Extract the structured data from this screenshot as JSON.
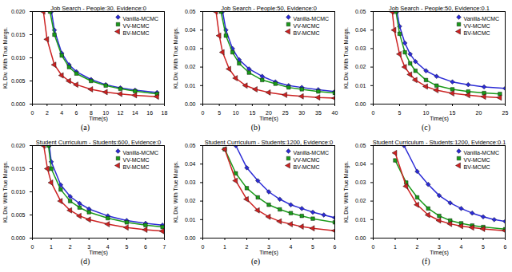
{
  "chart_data": [
    {
      "type": "line",
      "label": "(a)",
      "title": "Job Search - People:30, Evidence:0",
      "x_label": "Time(s)",
      "y_label": "KL Div. With True Margs.",
      "xlim": [
        0,
        18
      ],
      "xticks": [
        0,
        2,
        4,
        6,
        8,
        10,
        12,
        14,
        16,
        18
      ],
      "ylim": [
        0,
        0.02
      ],
      "yticks": [
        {
          "value": 0,
          "label": "0.000"
        },
        {
          "value": 0.005,
          "label": "0.005"
        },
        {
          "value": 0.01,
          "label": "0.010"
        },
        {
          "value": 0.015,
          "label": "0.015"
        },
        {
          "value": 0.02,
          "label": "0.020"
        }
      ],
      "legend": "top-right",
      "series": [
        {
          "name": "Vanilla-MCMC",
          "color": "#2b2bd6",
          "marker": "diamond",
          "x": [
            2.6,
            3,
            4,
            5,
            6,
            8,
            10,
            12,
            14,
            17
          ],
          "values": [
            0.02,
            0.016,
            0.011,
            0.0085,
            0.007,
            0.0053,
            0.0042,
            0.0035,
            0.003,
            0.0025
          ]
        },
        {
          "name": "VV-MCMC",
          "color": "#1a9a1a",
          "marker": "square",
          "x": [
            2.4,
            3,
            4,
            5,
            6,
            8,
            10,
            12,
            14,
            17
          ],
          "values": [
            0.02,
            0.015,
            0.0105,
            0.008,
            0.0066,
            0.005,
            0.004,
            0.0033,
            0.0028,
            0.0022
          ]
        },
        {
          "name": "BV-MCMC",
          "color": "#cc2222",
          "marker": "triangle-left",
          "x": [
            1.5,
            2,
            3,
            4,
            5,
            6,
            8,
            10,
            12,
            14,
            17
          ],
          "values": [
            0.02,
            0.014,
            0.0085,
            0.0062,
            0.005,
            0.0042,
            0.0032,
            0.0026,
            0.0022,
            0.0019,
            0.0016
          ]
        }
      ]
    },
    {
      "type": "line",
      "label": "(b)",
      "title": "Job Search - People:50, Evidence:0",
      "x_label": "Time(s)",
      "y_label": "KL Div. With True Margs.",
      "xlim": [
        0,
        40
      ],
      "xticks": [
        0,
        5,
        10,
        15,
        20,
        25,
        30,
        35,
        40
      ],
      "ylim": [
        0,
        0.05
      ],
      "yticks": [
        {
          "value": 0,
          "label": "0.00"
        },
        {
          "value": 0.01,
          "label": "0.01"
        },
        {
          "value": 0.02,
          "label": "0.02"
        },
        {
          "value": 0.03,
          "label": "0.03"
        },
        {
          "value": 0.04,
          "label": "0.04"
        },
        {
          "value": 0.05,
          "label": "0.05"
        }
      ],
      "legend": "top-right",
      "series": [
        {
          "name": "Vanilla-MCMC",
          "color": "#2b2bd6",
          "marker": "diamond",
          "x": [
            6,
            7,
            9,
            11,
            14,
            18,
            22,
            26,
            30,
            35,
            40
          ],
          "values": [
            0.05,
            0.04,
            0.03,
            0.024,
            0.019,
            0.015,
            0.012,
            0.01,
            0.009,
            0.0078,
            0.0068
          ]
        },
        {
          "name": "VV-MCMC",
          "color": "#1a9a1a",
          "marker": "square",
          "x": [
            5.5,
            7,
            9,
            11,
            14,
            18,
            22,
            26,
            30,
            35,
            40
          ],
          "values": [
            0.05,
            0.037,
            0.028,
            0.022,
            0.017,
            0.013,
            0.011,
            0.009,
            0.008,
            0.0068,
            0.006
          ]
        },
        {
          "name": "BV-MCMC",
          "color": "#cc2222",
          "marker": "triangle-left",
          "x": [
            4,
            5,
            6,
            8,
            10,
            13,
            16,
            20,
            25,
            30,
            35,
            40
          ],
          "values": [
            0.05,
            0.037,
            0.028,
            0.019,
            0.014,
            0.01,
            0.008,
            0.0063,
            0.005,
            0.0042,
            0.0036,
            0.0032
          ]
        }
      ]
    },
    {
      "type": "line",
      "label": "(c)",
      "title": "Job Search - People:50, Evidence:0.1",
      "x_label": "Time(s)",
      "y_label": "KL Div. With True Margs.",
      "xlim": [
        0,
        25
      ],
      "xticks": [
        0,
        5,
        10,
        15,
        20,
        25
      ],
      "ylim": [
        0,
        0.05
      ],
      "yticks": [
        {
          "value": 0,
          "label": "0.00"
        },
        {
          "value": 0.01,
          "label": "0.01"
        },
        {
          "value": 0.02,
          "label": "0.02"
        },
        {
          "value": 0.03,
          "label": "0.03"
        },
        {
          "value": 0.04,
          "label": "0.04"
        },
        {
          "value": 0.05,
          "label": "0.05"
        }
      ],
      "legend": "top-right",
      "series": [
        {
          "name": "Vanilla-MCMC",
          "color": "#2b2bd6",
          "marker": "diamond",
          "x": [
            4.5,
            5,
            6,
            7,
            8,
            10,
            12,
            15,
            18,
            21,
            25
          ],
          "values": [
            0.05,
            0.042,
            0.033,
            0.027,
            0.023,
            0.018,
            0.015,
            0.012,
            0.0105,
            0.0093,
            0.0085
          ]
        },
        {
          "name": "VV-MCMC",
          "color": "#1a9a1a",
          "marker": "square",
          "x": [
            4.3,
            5,
            6,
            7,
            8,
            10,
            12,
            15,
            18,
            21,
            24
          ],
          "values": [
            0.05,
            0.038,
            0.028,
            0.022,
            0.018,
            0.013,
            0.01,
            0.008,
            0.0068,
            0.006,
            0.0055
          ]
        },
        {
          "name": "BV-MCMC",
          "color": "#cc2222",
          "marker": "triangle-left",
          "x": [
            3.6,
            4,
            5,
            6,
            7,
            8,
            10,
            12,
            15,
            18,
            21,
            24
          ],
          "values": [
            0.05,
            0.04,
            0.027,
            0.02,
            0.016,
            0.013,
            0.0095,
            0.0075,
            0.0058,
            0.0048,
            0.004,
            0.0035
          ]
        }
      ]
    },
    {
      "type": "line",
      "label": "(d)",
      "title": "Student Curriculum - Students:600, Evidence:0",
      "x_label": "Time(s)",
      "y_label": "KL Div. With True Margs.",
      "xlim": [
        0,
        7
      ],
      "xticks": [
        0,
        1,
        2,
        3,
        4,
        5,
        6,
        7
      ],
      "ylim": [
        0,
        0.02
      ],
      "yticks": [
        {
          "value": 0,
          "label": "0.000"
        },
        {
          "value": 0.005,
          "label": "0.005"
        },
        {
          "value": 0.01,
          "label": "0.010"
        },
        {
          "value": 0.015,
          "label": "0.015"
        },
        {
          "value": 0.02,
          "label": "0.020"
        }
      ],
      "legend": "top-right",
      "series": [
        {
          "name": "Vanilla-MCMC",
          "color": "#2b2bd6",
          "marker": "diamond",
          "x": [
            0.9,
            1,
            1.5,
            2,
            2.5,
            3,
            4,
            5,
            6,
            6.9
          ],
          "values": [
            0.02,
            0.0165,
            0.0115,
            0.009,
            0.0075,
            0.0063,
            0.0048,
            0.0038,
            0.0032,
            0.0028
          ]
        },
        {
          "name": "VV-MCMC",
          "color": "#1a9a1a",
          "marker": "square",
          "x": [
            0.85,
            1,
            1.5,
            2,
            2.5,
            3,
            4,
            5,
            6,
            6.9
          ],
          "values": [
            0.02,
            0.015,
            0.0105,
            0.008,
            0.0066,
            0.0056,
            0.0043,
            0.0034,
            0.0028,
            0.0024
          ]
        },
        {
          "name": "BV-MCMC",
          "color": "#cc2222",
          "marker": "triangle-left",
          "x": [
            0.6,
            0.8,
            1,
            1.5,
            2,
            2.5,
            3,
            4,
            5,
            6,
            6.9
          ],
          "values": [
            0.02,
            0.015,
            0.012,
            0.008,
            0.006,
            0.0048,
            0.004,
            0.003,
            0.0023,
            0.0018,
            0.0015
          ]
        }
      ]
    },
    {
      "type": "line",
      "label": "(e)",
      "title": "Student Curriculum - Students:1200, Evidence:0",
      "x_label": "Time(s)",
      "y_label": "KL Div. With True Margs.",
      "xlim": [
        0,
        6
      ],
      "xticks": [
        0,
        1,
        2,
        3,
        4,
        5,
        6
      ],
      "ylim": [
        0,
        0.05
      ],
      "yticks": [
        {
          "value": 0,
          "label": "0.00"
        },
        {
          "value": 0.01,
          "label": "0.01"
        },
        {
          "value": 0.02,
          "label": "0.02"
        },
        {
          "value": 0.03,
          "label": "0.03"
        },
        {
          "value": 0.04,
          "label": "0.04"
        },
        {
          "value": 0.05,
          "label": "0.05"
        }
      ],
      "legend": "top-right",
      "series": [
        {
          "name": "Vanilla-MCMC",
          "color": "#2b2bd6",
          "marker": "diamond",
          "x": [
            1.5,
            2,
            2.5,
            3,
            3.5,
            4,
            4.5,
            5,
            5.5,
            6
          ],
          "values": [
            0.05,
            0.038,
            0.031,
            0.025,
            0.021,
            0.018,
            0.016,
            0.014,
            0.0125,
            0.011
          ]
        },
        {
          "name": "VV-MCMC",
          "color": "#1a9a1a",
          "marker": "square",
          "x": [
            1,
            1.5,
            2,
            2.5,
            3,
            3.5,
            4,
            4.5,
            5,
            6
          ],
          "values": [
            0.048,
            0.035,
            0.027,
            0.022,
            0.018,
            0.0155,
            0.0135,
            0.012,
            0.0105,
            0.0085
          ]
        },
        {
          "name": "BV-MCMC",
          "color": "#cc2222",
          "marker": "triangle-left",
          "x": [
            1,
            1.5,
            2,
            2.5,
            3,
            3.5,
            4,
            4.5,
            5,
            6
          ],
          "values": [
            0.048,
            0.031,
            0.021,
            0.015,
            0.0115,
            0.009,
            0.0075,
            0.0062,
            0.0053,
            0.004
          ]
        }
      ]
    },
    {
      "type": "line",
      "label": "(f)",
      "title": "Student Curriculum - Students:1200, Evidence:0.1",
      "x_label": "Time(s)",
      "y_label": "KL Div. With True Margs.",
      "xlim": [
        0,
        6
      ],
      "xticks": [
        0,
        1,
        2,
        3,
        4,
        5,
        6
      ],
      "ylim": [
        0,
        0.05
      ],
      "yticks": [
        {
          "value": 0,
          "label": "0.00"
        },
        {
          "value": 0.01,
          "label": "0.01"
        },
        {
          "value": 0.02,
          "label": "0.02"
        },
        {
          "value": 0.03,
          "label": "0.03"
        },
        {
          "value": 0.04,
          "label": "0.04"
        },
        {
          "value": 0.05,
          "label": "0.05"
        }
      ],
      "legend": "top-right",
      "series": [
        {
          "name": "Vanilla-MCMC",
          "color": "#2b2bd6",
          "marker": "diamond",
          "x": [
            1.4,
            2,
            2.5,
            3,
            3.5,
            4,
            4.5,
            5,
            5.5,
            6
          ],
          "values": [
            0.05,
            0.036,
            0.029,
            0.023,
            0.019,
            0.016,
            0.0135,
            0.0115,
            0.01,
            0.009
          ]
        },
        {
          "name": "VV-MCMC",
          "color": "#1a9a1a",
          "marker": "square",
          "x": [
            1,
            1.5,
            2,
            2.5,
            3,
            3.5,
            4,
            4.5,
            5,
            6
          ],
          "values": [
            0.042,
            0.03,
            0.022,
            0.016,
            0.012,
            0.0095,
            0.008,
            0.0068,
            0.006,
            0.0048
          ]
        },
        {
          "name": "BV-MCMC",
          "color": "#cc2222",
          "marker": "triangle-left",
          "x": [
            1,
            1.5,
            2,
            2.5,
            3,
            3.5,
            4,
            4.5,
            5,
            6
          ],
          "values": [
            0.046,
            0.028,
            0.018,
            0.0125,
            0.0095,
            0.0077,
            0.0065,
            0.0057,
            0.005,
            0.004
          ]
        }
      ]
    }
  ]
}
